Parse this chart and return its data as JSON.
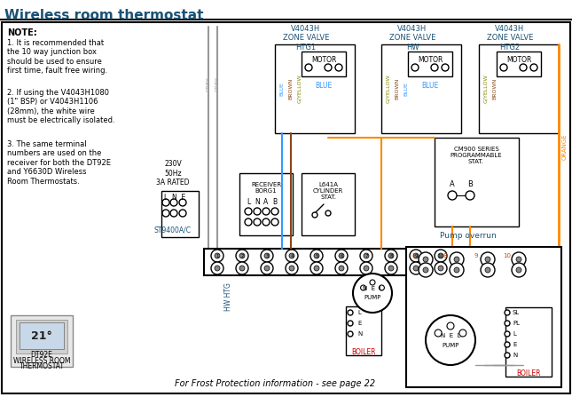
{
  "title": "Wireless room thermostat",
  "title_color": "#1a5276",
  "background": "#ffffff",
  "border_color": "#000000",
  "note_text": "NOTE:",
  "note1": "1. It is recommended that\nthe 10 way junction box\nshould be used to ensure\nfirst time, fault free wiring.",
  "note2": "2. If using the V4043H1080\n(1\" BSP) or V4043H1106\n(28mm), the white wire\nmust be electrically isolated.",
  "note3": "3. The same terminal\nnumbers are used on the\nreceiver for both the DT92E\nand Y6630D Wireless\nRoom Thermostats.",
  "footer": "For Frost Protection information - see page 22",
  "valve1_label": "V4043H\nZONE VALVE\nHTG1",
  "valve2_label": "V4043H\nZONE VALVE\nHW",
  "valve3_label": "V4043H\nZONE VALVE\nHTG2",
  "pump_overrun_label": "Pump overrun",
  "boiler_color": "#cc0000",
  "blue_color": "#3399ff",
  "orange_color": "#ff8800",
  "grey_color": "#999999",
  "brown_color": "#8B4513",
  "gyellow_color": "#888800",
  "label_color": "#1a5276"
}
